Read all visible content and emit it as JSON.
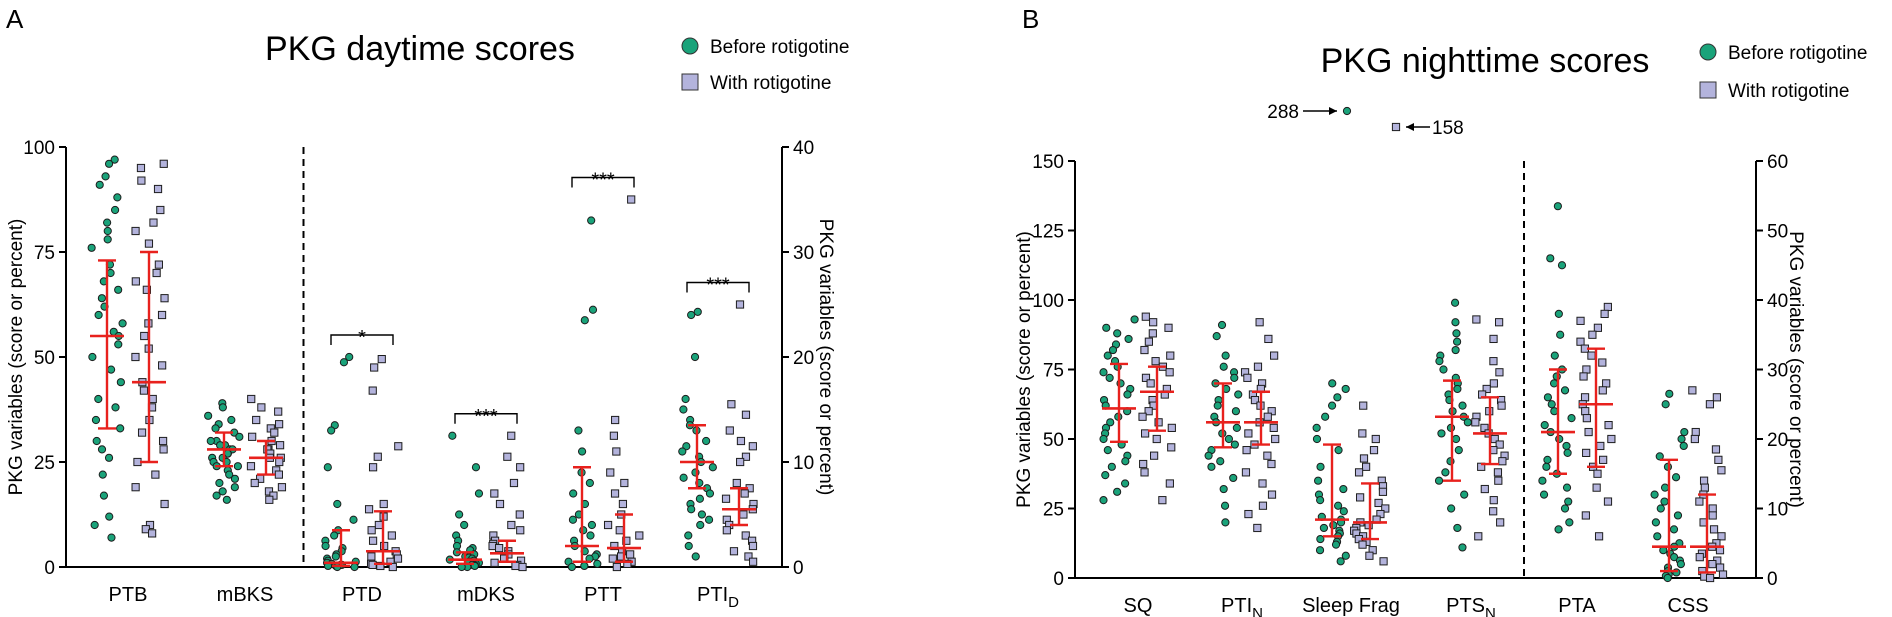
{
  "chart_data": [
    {
      "panel": "A",
      "type": "scatter",
      "title": "PKG daytime scores",
      "legend": {
        "position": "top-right",
        "entries": [
          {
            "label": "Before rotigotine",
            "marker": "circle",
            "color": "#1aa37a"
          },
          {
            "label": "With rotigotine",
            "marker": "square",
            "color": "#b3b3dc"
          }
        ]
      },
      "ylabel_left": "PKG variables (score or percent)",
      "ylabel_right": "PKG variables (score or percent)",
      "ylim_left": [
        0,
        100
      ],
      "yticks_left": [
        "0",
        "25",
        "50",
        "75",
        "100"
      ],
      "ylim_right": [
        0,
        40
      ],
      "yticks_right": [
        "0",
        "10",
        "20",
        "30",
        "40"
      ],
      "categories": [
        {
          "label": "PTB",
          "sub": "",
          "axis": "left",
          "before": {
            "median": 55,
            "q1": 33,
            "q3": 73,
            "points": [
              97,
              96,
              93,
              91,
              88,
              85,
              82,
              80,
              78,
              76,
              72,
              70,
              68,
              66,
              64,
              62,
              60,
              58,
              56,
              55,
              53,
              50,
              47,
              44,
              40,
              38,
              35,
              33,
              30,
              28,
              26,
              22,
              17,
              12,
              10,
              7
            ]
          },
          "with": {
            "median": 44,
            "q1": 25,
            "q3": 75,
            "points": [
              96,
              95,
              92,
              90,
              85,
              82,
              80,
              77,
              72,
              70,
              68,
              66,
              64,
              60,
              58,
              55,
              52,
              50,
              48,
              44,
              42,
              40,
              38,
              35,
              32,
              30,
              28,
              25,
              22,
              19,
              15,
              10,
              9,
              8
            ]
          }
        },
        {
          "label": "mBKS",
          "sub": "",
          "axis": "left",
          "before": {
            "median": 28,
            "q1": 24,
            "q3": 32,
            "points": [
              39,
              38,
              36,
              35,
              34,
              33,
              32,
              31,
              30,
              30,
              29,
              29,
              28,
              28,
              27,
              27,
              26,
              26,
              25,
              25,
              24,
              24,
              23,
              22,
              21,
              20,
              19,
              18,
              17,
              16
            ]
          },
          "with": {
            "median": 26,
            "q1": 22,
            "q3": 30,
            "points": [
              40,
              38,
              37,
              35,
              34,
              33,
              32,
              31,
              30,
              29,
              28,
              28,
              27,
              26,
              26,
              25,
              24,
              23,
              22,
              21,
              20,
              19,
              18,
              17,
              16
            ]
          }
        },
        {
          "label": "PTD",
          "sub": "",
          "axis": "right",
          "before": {
            "median": 0.4,
            "q1": 0.1,
            "q3": 3.5,
            "points": [
              20,
              19.5,
              13.5,
              13,
              9.5,
              6,
              4.5,
              3.5,
              3,
              2.5,
              2,
              1.8,
              1.5,
              1.2,
              1,
              0.8,
              0.6,
              0.5,
              0.4,
              0.3,
              0.2,
              0.2,
              0.1,
              0.1,
              0,
              0
            ]
          },
          "with": {
            "median": 1.5,
            "q1": 0.3,
            "q3": 5.3,
            "points": [
              19.8,
              19,
              16.8,
              11.5,
              10.5,
              9.5,
              6,
              5.5,
              4.8,
              4,
              3.5,
              3,
              2.5,
              2,
              1.5,
              1.2,
              1,
              0.8,
              0.5,
              0.3,
              0.2,
              0.1,
              0
            ]
          }
        },
        {
          "label": "mDKS",
          "sub": "",
          "axis": "right",
          "before": {
            "median": 0.7,
            "q1": 0.3,
            "q3": 1.4,
            "points": [
              12.5,
              9.5,
              7,
              5,
              4,
              3,
              2.5,
              2,
              1.8,
              1.6,
              1.4,
              1.2,
              1,
              0.9,
              0.8,
              0.7,
              0.6,
              0.5,
              0.4,
              0.3,
              0.2,
              0.2,
              0.1,
              0,
              0
            ]
          },
          "with": {
            "median": 1.3,
            "q1": 0.5,
            "q3": 2.5,
            "points": [
              12.5,
              10.5,
              9.5,
              8,
              7,
              6,
              5,
              4,
              3.5,
              3,
              2.5,
              2.2,
              2,
              1.8,
              1.5,
              1.2,
              1,
              0.8,
              0.6,
              0.4,
              0.2,
              0.1,
              0
            ]
          }
        },
        {
          "label": "PTT",
          "sub": "",
          "axis": "right",
          "before": {
            "median": 2,
            "q1": 0.5,
            "q3": 9.5,
            "points": [
              33,
              24.5,
              23.5,
              13,
              11,
              9,
              8,
              7,
              6,
              5,
              4.5,
              4,
              3.5,
              3,
              2.5,
              2,
              1.5,
              1.2,
              1,
              0.8,
              0.5,
              0.3,
              0.1,
              0
            ]
          },
          "with": {
            "median": 1.8,
            "q1": 0.5,
            "q3": 5,
            "points": [
              35,
              14,
              12.5,
              11,
              9,
              8,
              7,
              6,
              5,
              4,
              3.5,
              3,
              2.5,
              2,
              1.5,
              1.2,
              1,
              0.8,
              0.5,
              0.3,
              0
            ]
          }
        },
        {
          "label": "PTI",
          "sub": "D",
          "axis": "right",
          "before": {
            "median": 10,
            "q1": 7.5,
            "q3": 13.5,
            "points": [
              24.3,
              24,
              20,
              16,
              15,
              14,
              13.5,
              13,
              12,
              11.5,
              11,
              10.5,
              10,
              9.5,
              9,
              8.5,
              8,
              7.5,
              7,
              6.5,
              6,
              5.5,
              5,
              4.5,
              4,
              3,
              2,
              1
            ]
          },
          "with": {
            "median": 5.5,
            "q1": 4,
            "q3": 7.5,
            "points": [
              25,
              15.5,
              14.5,
              13,
              12,
              11.5,
              10.5,
              10,
              8,
              7.5,
              7,
              6.5,
              6,
              5.5,
              5,
              4.5,
              4,
              3.5,
              3,
              2.5,
              2,
              1.5,
              1,
              0.5
            ]
          }
        }
      ],
      "significance": [
        {
          "category": "PTD",
          "label": "*"
        },
        {
          "category": "mDKS",
          "label": "***"
        },
        {
          "category": "PTT",
          "label": "***"
        },
        {
          "category": "PTI",
          "label": "***"
        }
      ]
    },
    {
      "panel": "B",
      "type": "scatter",
      "title": "PKG nighttime scores",
      "legend": {
        "position": "top-right",
        "entries": [
          {
            "label": "Before rotigotine",
            "marker": "circle",
            "color": "#1aa37a"
          },
          {
            "label": "With rotigotine",
            "marker": "square",
            "color": "#b3b3dc"
          }
        ]
      },
      "ylabel_left": "PKG variables (score or percent)",
      "ylabel_right": "PKG variables (score or percent)",
      "ylim_left": [
        0,
        150
      ],
      "yticks_left": [
        "0",
        "25",
        "50",
        "75",
        "100",
        "125",
        "150"
      ],
      "ylim_right": [
        0,
        60
      ],
      "yticks_right": [
        "0",
        "10",
        "20",
        "30",
        "40",
        "50",
        "60"
      ],
      "outliers": [
        {
          "label": "288",
          "series": "before",
          "category": "Sleep Frag"
        },
        {
          "label": "158",
          "series": "with",
          "category": "Sleep Frag"
        }
      ],
      "categories": [
        {
          "label": "SQ",
          "sub": "",
          "axis": "left",
          "before": {
            "median": 61,
            "q1": 49,
            "q3": 77,
            "points": [
              93,
              90,
              88,
              86,
              84,
              82,
              80,
              78,
              76,
              74,
              72,
              70,
              68,
              66,
              64,
              62,
              60,
              58,
              56,
              54,
              52,
              50,
              48,
              46,
              44,
              42,
              40,
              37,
              34,
              31,
              28
            ]
          },
          "with": {
            "median": 67,
            "q1": 53,
            "q3": 76,
            "points": [
              94,
              92,
              90,
              88,
              85,
              82,
              80,
              78,
              76,
              74,
              72,
              70,
              68,
              66,
              64,
              62,
              60,
              58,
              56,
              54,
              52,
              50,
              47,
              44,
              41,
              38,
              34,
              28
            ]
          }
        },
        {
          "label": "PTI",
          "sub": "N",
          "axis": "left",
          "before": {
            "median": 56,
            "q1": 47,
            "q3": 70,
            "points": [
              91,
              87,
              80,
              76,
              74,
              72,
              70,
              68,
              66,
              64,
              62,
              60,
              58,
              56,
              54,
              52,
              50,
              48,
              46,
              44,
              42,
              40,
              36,
              32,
              26,
              20
            ]
          },
          "with": {
            "median": 56,
            "q1": 48,
            "q3": 67,
            "points": [
              92,
              86,
              80,
              76,
              74,
              72,
              70,
              68,
              66,
              64,
              62,
              60,
              58,
              56,
              54,
              52,
              50,
              48,
              46,
              44,
              41,
              38,
              34,
              30,
              26,
              23,
              18
            ]
          }
        },
        {
          "label": "Sleep Frag",
          "sub": "",
          "axis": "left",
          "before": {
            "median": 21,
            "q1": 15,
            "q3": 48,
            "points": [
              70,
              68,
              65,
              62,
              58,
              54,
              50,
              46,
              40,
              35,
              32,
              30,
              28,
              26,
              24,
              22,
              21,
              20,
              19,
              18,
              17,
              16,
              15,
              14,
              13,
              12,
              10,
              8,
              6
            ]
          },
          "with": {
            "median": 20,
            "q1": 14,
            "q3": 34,
            "points": [
              62,
              52,
              50,
              46,
              43,
              40,
              38,
              35,
              33,
              31,
              29,
              27,
              25,
              23,
              21,
              20,
              19,
              18,
              17,
              16,
              15,
              14,
              13,
              12,
              10,
              8,
              6
            ]
          }
        },
        {
          "label": "PTS",
          "sub": "N",
          "axis": "left",
          "before": {
            "median": 58,
            "q1": 35,
            "q3": 71,
            "points": [
              99,
              92,
              88,
              85,
              82,
              80,
              78,
              75,
              72,
              70,
              68,
              66,
              64,
              62,
              60,
              58,
              56,
              54,
              52,
              50,
              46,
              42,
              38,
              35,
              30,
              25,
              18,
              11
            ]
          },
          "with": {
            "median": 52,
            "q1": 41,
            "q3": 65,
            "points": [
              93,
              92,
              86,
              78,
              74,
              70,
              68,
              66,
              64,
              62,
              60,
              58,
              56,
              54,
              52,
              50,
              48,
              46,
              44,
              42,
              40,
              38,
              35,
              32,
              28,
              24,
              20,
              15
            ]
          }
        },
        {
          "label": "PTA",
          "sub": "",
          "axis": "right",
          "before": {
            "median": 21,
            "q1": 15,
            "q3": 30,
            "points": [
              53.5,
              46,
              45,
              38,
              35,
              32,
              30,
              29,
              28,
              27,
              26,
              25,
              24,
              23,
              22,
              21,
              20,
              19,
              18,
              17,
              16,
              15,
              14,
              13,
              12,
              11,
              10,
              8,
              7
            ]
          },
          "with": {
            "median": 25,
            "q1": 16,
            "q3": 33,
            "points": [
              39,
              38,
              37,
              36,
              35,
              34,
              33,
              32,
              31,
              30,
              29,
              28,
              27,
              26,
              25,
              24,
              23,
              22,
              21,
              20,
              19,
              18,
              17,
              16,
              15,
              13,
              11,
              9,
              6
            ]
          }
        },
        {
          "label": "CSS",
          "sub": "",
          "axis": "right",
          "before": {
            "median": 4.5,
            "q1": 1,
            "q3": 17,
            "points": [
              26.5,
              25,
              21,
              20,
              19,
              17.5,
              16,
              14.5,
              13,
              12,
              11,
              10,
              9,
              8,
              7,
              6,
              5,
              4.5,
              4,
              3.5,
              3,
              2.5,
              2,
              1.5,
              1,
              0.8,
              0.5,
              0.3,
              0
            ]
          },
          "with": {
            "median": 4.5,
            "q1": 0.8,
            "q3": 12,
            "points": [
              27,
              26,
              25,
              21,
              20,
              18.5,
              17,
              15.5,
              14,
              13,
              12,
              11,
              10,
              9,
              8,
              7,
              6,
              5,
              4.5,
              4,
              3.5,
              3,
              2.5,
              2,
              1.5,
              1,
              0.5,
              0.2,
              0
            ]
          }
        }
      ],
      "significance": []
    }
  ],
  "panel_labels": {
    "a": "A",
    "b": "B"
  }
}
